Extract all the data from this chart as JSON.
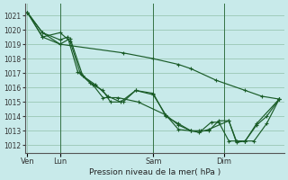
{
  "bg_color": "#c8eaea",
  "grid_color": "#a0ccbb",
  "line_color": "#1a5c28",
  "ylabel": "Pression niveau de la mer( hPa )",
  "ylim": [
    1011.5,
    1021.8
  ],
  "yticks": [
    1012,
    1013,
    1014,
    1015,
    1016,
    1017,
    1018,
    1019,
    1020,
    1021
  ],
  "xtick_labels": [
    "Ven",
    "Lun",
    "Sam",
    "Dim"
  ],
  "series": [
    {
      "x": [
        0.0,
        0.06,
        0.13,
        0.38,
        0.5,
        0.6,
        0.65,
        0.75,
        0.865,
        0.93,
        1.0
      ],
      "y": [
        1021.2,
        1019.8,
        1019.0,
        1018.4,
        1018.0,
        1017.6,
        1017.3,
        1016.5,
        1015.8,
        1015.4,
        1015.2
      ]
    },
    {
      "x": [
        0.0,
        0.06,
        0.13,
        0.16,
        0.2,
        0.25,
        0.3,
        0.33,
        0.38,
        0.43,
        0.5,
        0.55,
        0.6,
        0.65,
        0.68,
        0.72,
        0.76,
        0.8,
        0.83,
        0.865,
        0.9,
        0.95,
        1.0
      ],
      "y": [
        1021.2,
        1019.8,
        1019.3,
        1019.5,
        1017.1,
        1016.3,
        1015.8,
        1015.0,
        1015.0,
        1015.8,
        1015.5,
        1014.1,
        1013.1,
        1013.0,
        1013.0,
        1013.0,
        1013.7,
        1013.7,
        1012.3,
        1012.3,
        1012.3,
        1013.5,
        1015.2
      ]
    },
    {
      "x": [
        0.0,
        0.06,
        0.13,
        0.17,
        0.22,
        0.27,
        0.32,
        0.37,
        0.43,
        0.5,
        0.55,
        0.6,
        0.65,
        0.69,
        0.73,
        0.76,
        0.8,
        0.83,
        0.865,
        0.91,
        0.95,
        1.0
      ],
      "y": [
        1021.2,
        1019.5,
        1019.0,
        1019.4,
        1016.8,
        1016.2,
        1015.4,
        1015.0,
        1015.8,
        1015.6,
        1014.0,
        1013.5,
        1013.0,
        1013.0,
        1013.6,
        1013.6,
        1012.3,
        1012.3,
        1012.3,
        1013.4,
        1014.0,
        1015.2
      ]
    },
    {
      "x": [
        0.0,
        0.06,
        0.13,
        0.17,
        0.21,
        0.26,
        0.3,
        0.36,
        0.44,
        0.55,
        0.6,
        0.65,
        0.68,
        0.72,
        0.8,
        0.83,
        0.865,
        0.91,
        1.0
      ],
      "y": [
        1021.2,
        1019.5,
        1019.8,
        1019.2,
        1017.0,
        1016.2,
        1015.3,
        1015.3,
        1015.0,
        1014.1,
        1013.4,
        1013.0,
        1012.9,
        1013.1,
        1013.7,
        1012.2,
        1012.3,
        1013.5,
        1015.2
      ]
    }
  ]
}
